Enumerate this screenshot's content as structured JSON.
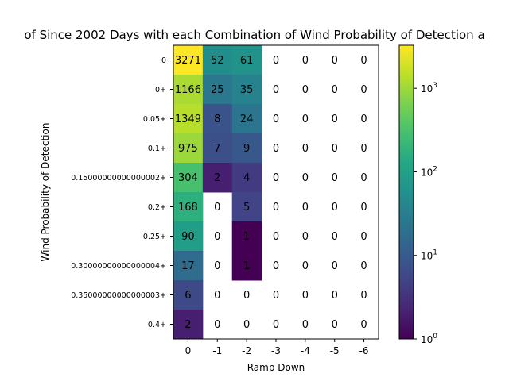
{
  "chart_data": {
    "type": "heatmap",
    "title": "of Since 2002 Days with each Combination of Wind Probability of Detection a",
    "xlabel": "Ramp Down",
    "ylabel": "Wind Probability of Detection",
    "x_categories": [
      "0",
      "-1",
      "-2",
      "-3",
      "-4",
      "-5",
      "-6"
    ],
    "y_categories": [
      "0",
      "0+",
      "0.05+",
      "0.1+",
      "0.15000000000000002+",
      "0.2+",
      "0.25+",
      "0.30000000000000004+",
      "0.35000000000000003+",
      "0.4+"
    ],
    "values": [
      [
        3271,
        52,
        61,
        0,
        0,
        0,
        0
      ],
      [
        1166,
        25,
        35,
        0,
        0,
        0,
        0
      ],
      [
        1349,
        8,
        24,
        0,
        0,
        0,
        0
      ],
      [
        975,
        7,
        9,
        0,
        0,
        0,
        0
      ],
      [
        304,
        2,
        4,
        0,
        0,
        0,
        0
      ],
      [
        168,
        0,
        5,
        0,
        0,
        0,
        0
      ],
      [
        90,
        0,
        1,
        0,
        0,
        0,
        0
      ],
      [
        17,
        0,
        1,
        0,
        0,
        0,
        0
      ],
      [
        6,
        0,
        0,
        0,
        0,
        0,
        0
      ],
      [
        2,
        0,
        0,
        0,
        0,
        0,
        0
      ]
    ],
    "colorbar": {
      "scale": "log",
      "range": [
        1,
        3271
      ],
      "colormap": "viridis",
      "ticks": [
        {
          "base": "10",
          "exp": "0",
          "value": 1
        },
        {
          "base": "10",
          "exp": "1",
          "value": 10
        },
        {
          "base": "10",
          "exp": "2",
          "value": 100
        },
        {
          "base": "10",
          "exp": "3",
          "value": 1000
        }
      ]
    },
    "zero_cells": "blank (white)",
    "grid": false
  }
}
